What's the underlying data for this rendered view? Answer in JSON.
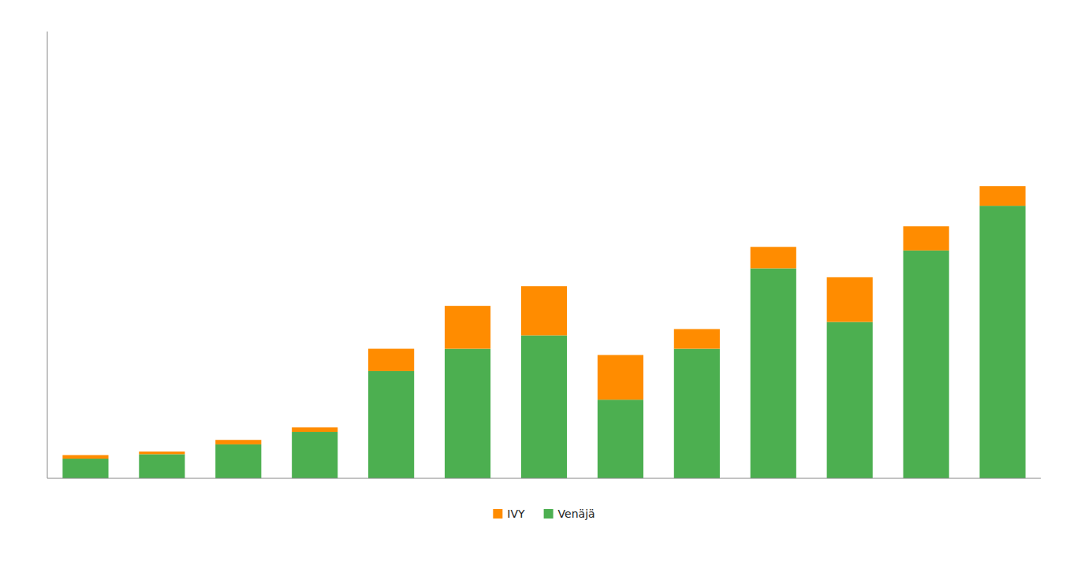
{
  "chart_data": {
    "type": "bar",
    "stacked": true,
    "categories": [
      null,
      null,
      null,
      null,
      null,
      null,
      null,
      null,
      null,
      null,
      null,
      null,
      null
    ],
    "series": [
      {
        "name": "Venäjä",
        "color": "#4CAF50",
        "values": [
          22,
          27,
          38,
          52,
          120,
          145,
          160,
          88,
          145,
          235,
          175,
          255,
          305
        ]
      },
      {
        "name": "IVY",
        "color": "#FF8C00",
        "values": [
          4,
          3,
          5,
          5,
          25,
          48,
          55,
          50,
          22,
          24,
          50,
          27,
          22
        ]
      }
    ],
    "ylim": [
      0,
      500
    ],
    "grid": false,
    "legend": "bottom",
    "tick_labels": false
  }
}
